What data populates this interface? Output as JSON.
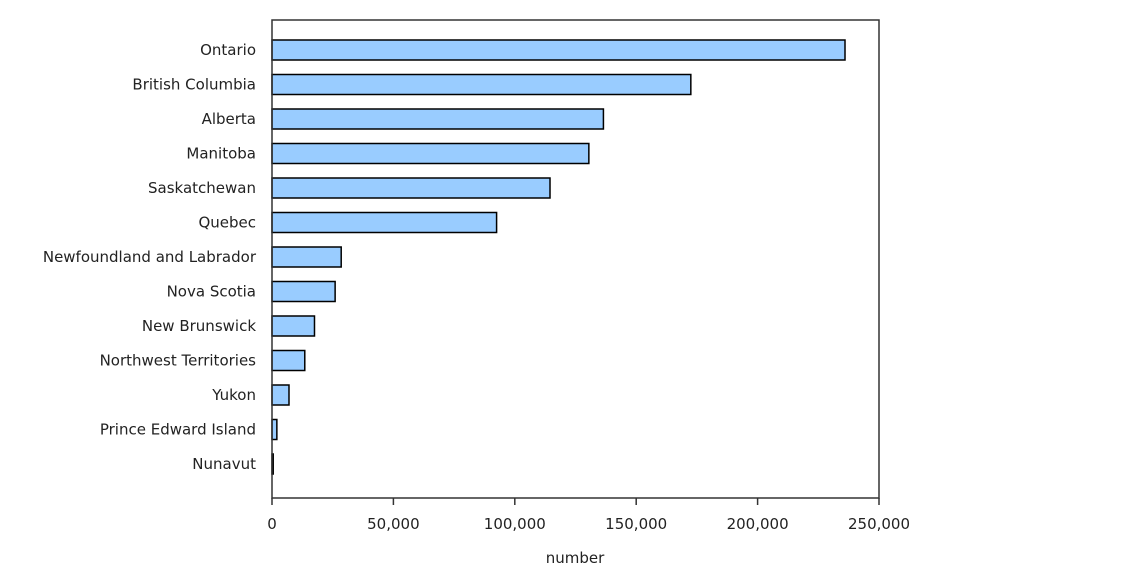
{
  "chart_data": {
    "type": "bar",
    "orientation": "horizontal",
    "categories": [
      "Ontario",
      "British Columbia",
      "Alberta",
      "Manitoba",
      "Saskatchewan",
      "Quebec",
      "Newfoundland and Labrador",
      "Nova Scotia",
      "New Brunswick",
      "Northwest Territories",
      "Yukon",
      "Prince Edward Island",
      "Nunavut"
    ],
    "values": [
      236000,
      172500,
      136500,
      130500,
      114500,
      92500,
      28500,
      26000,
      17500,
      13500,
      7000,
      2000,
      500
    ],
    "xlabel": "number",
    "xlim": [
      0,
      250000
    ],
    "xticks": [
      0,
      50000,
      100000,
      150000,
      200000,
      250000
    ],
    "xtick_labels": [
      "0",
      "50,000",
      "100,000",
      "150,000",
      "200,000",
      "250,000"
    ],
    "grid": false,
    "legend": "none",
    "colors": {
      "bar_fill": "#99ccff",
      "bar_stroke": "#000000"
    }
  }
}
